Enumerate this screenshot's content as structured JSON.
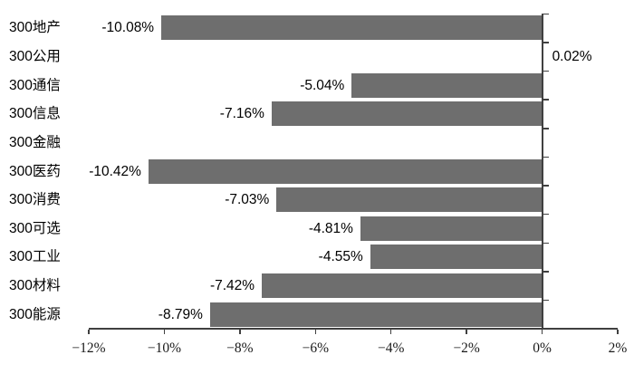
{
  "chart_data": {
    "type": "bar",
    "orientation": "horizontal",
    "title": "",
    "xlabel": "",
    "ylabel": "",
    "categories": [
      "300地产",
      "300公用",
      "300通信",
      "300信息",
      "300金融",
      "300医药",
      "300消费",
      "300可选",
      "300工业",
      "300材料",
      "300能源"
    ],
    "values": [
      -10.08,
      0.02,
      -5.04,
      -7.16,
      null,
      -10.42,
      -7.03,
      -4.81,
      -4.55,
      -7.42,
      -8.79
    ],
    "value_labels": [
      "-10.08%",
      "0.02%",
      "-5.04%",
      "-7.16%",
      "",
      "-10.42%",
      "-7.03%",
      "-4.81%",
      "-4.55%",
      "-7.42%",
      "-8.79%"
    ],
    "xlim": [
      -12,
      2
    ],
    "x_ticks": [
      {
        "value": -12,
        "label": "−12%"
      },
      {
        "value": -10,
        "label": "−10%"
      },
      {
        "value": -8,
        "label": "−8%"
      },
      {
        "value": -6,
        "label": "−6%"
      },
      {
        "value": -4,
        "label": "−4%"
      },
      {
        "value": -2,
        "label": "−2%"
      },
      {
        "value": 0,
        "label": "0%"
      },
      {
        "value": 2,
        "label": "2%"
      }
    ],
    "grid": false,
    "legend": null,
    "colors": {
      "bar": "#6E6E6E",
      "axis": "#404040",
      "text": "#000000",
      "background": "#FFFFFF"
    }
  }
}
